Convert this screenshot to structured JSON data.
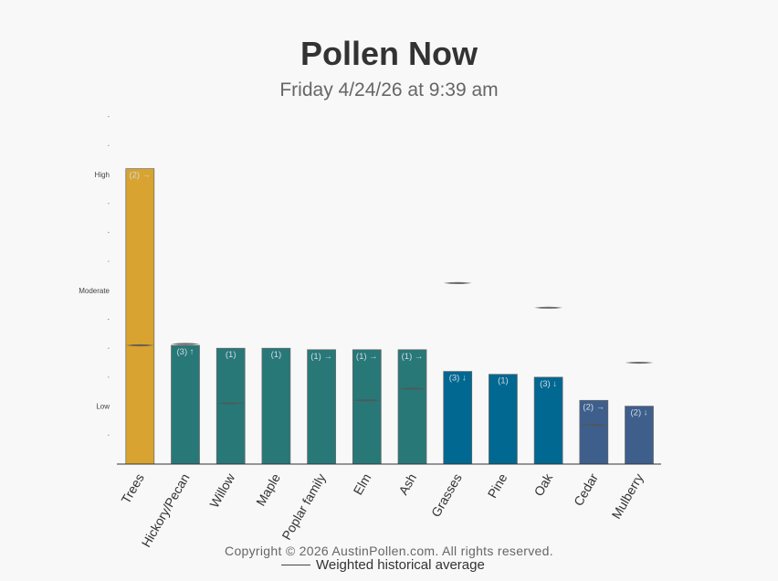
{
  "chart_data": {
    "type": "bar",
    "title": "Pollen Now",
    "subtitle": "Friday 4/24/26 at 9:39 am",
    "ylim": [
      0,
      12
    ],
    "yticks": [
      {
        "value": 1,
        "label": ""
      },
      {
        "value": 2,
        "label": "Low"
      },
      {
        "value": 3,
        "label": ""
      },
      {
        "value": 4,
        "label": ""
      },
      {
        "value": 5,
        "label": ""
      },
      {
        "value": 6,
        "label": "Moderate"
      },
      {
        "value": 7,
        "label": ""
      },
      {
        "value": 8,
        "label": ""
      },
      {
        "value": 9,
        "label": ""
      },
      {
        "value": 10,
        "label": "High"
      },
      {
        "value": 11,
        "label": ""
      },
      {
        "value": 12,
        "label": ""
      }
    ],
    "categories": [
      "Trees",
      "Hickory/Pecan",
      "Willow",
      "Maple",
      "Poplar family",
      "Elm",
      "Ash",
      "Grasses",
      "Pine",
      "Oak",
      "Cedar",
      "Mulberry"
    ],
    "values": [
      10.2,
      4.1,
      4.0,
      4.0,
      3.95,
      3.95,
      3.95,
      3.2,
      3.1,
      3.0,
      2.2,
      2.0
    ],
    "data_labels": [
      "(2) →",
      "(3) ↑",
      "(1)",
      "(1)",
      "(1) →",
      "(1) →",
      "(1) →",
      "(3) ↓",
      "(1)",
      "(3) ↓",
      "(2) →",
      "(2) ↓"
    ],
    "historical_average": [
      4.1,
      4.15,
      2.1,
      null,
      null,
      2.2,
      2.6,
      6.25,
      null,
      5.4,
      1.35,
      3.5
    ],
    "colors": [
      "#d8a330",
      "#287878",
      "#287878",
      "#287878",
      "#287878",
      "#287878",
      "#287878",
      "#006891",
      "#006891",
      "#006891",
      "#3e5f8c",
      "#3e5f8c"
    ],
    "legend": "Weighted historical average",
    "grid": false
  },
  "footer": {
    "copyright": "Copyright © 2026 AustinPollen.com.  All rights reserved."
  }
}
